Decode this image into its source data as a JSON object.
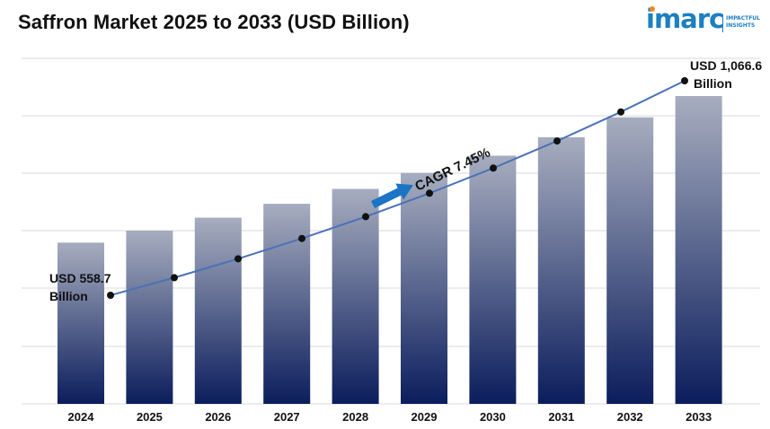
{
  "title": "Saffron Market 2025 to 2033 (USD Billion)",
  "logo": {
    "wordmark": "imarc",
    "tagline_line1": "IMPACTFUL",
    "tagline_line2": "INSIGHTS",
    "brand_color": "#1b7fc1",
    "accent_color": "#f28c1b"
  },
  "colors": {
    "bar_top": "#a7adbf",
    "bar_bottom": "#0b1d5c",
    "trend_line": "#4a72b6",
    "arrow": "#1b74c4"
  },
  "chart_data": {
    "type": "bar",
    "categories": [
      "2024",
      "2025",
      "2026",
      "2027",
      "2028",
      "2029",
      "2030",
      "2031",
      "2032",
      "2033"
    ],
    "values": [
      558.7,
      600.3,
      645.1,
      693.2,
      744.8,
      800.3,
      859.9,
      924.0,
      992.8,
      1066.6
    ],
    "trend_values": [
      558.7,
      600.3,
      645.1,
      693.2,
      744.8,
      800.3,
      859.9,
      924.0,
      992.8,
      1066.6
    ],
    "grid": true,
    "annotations": {
      "start_line1": "USD 558.7",
      "start_line2": "Billion",
      "end_line1": "USD 1,066.6",
      "end_line2": "Billion",
      "cagr": "CAGR 7.45%"
    }
  }
}
